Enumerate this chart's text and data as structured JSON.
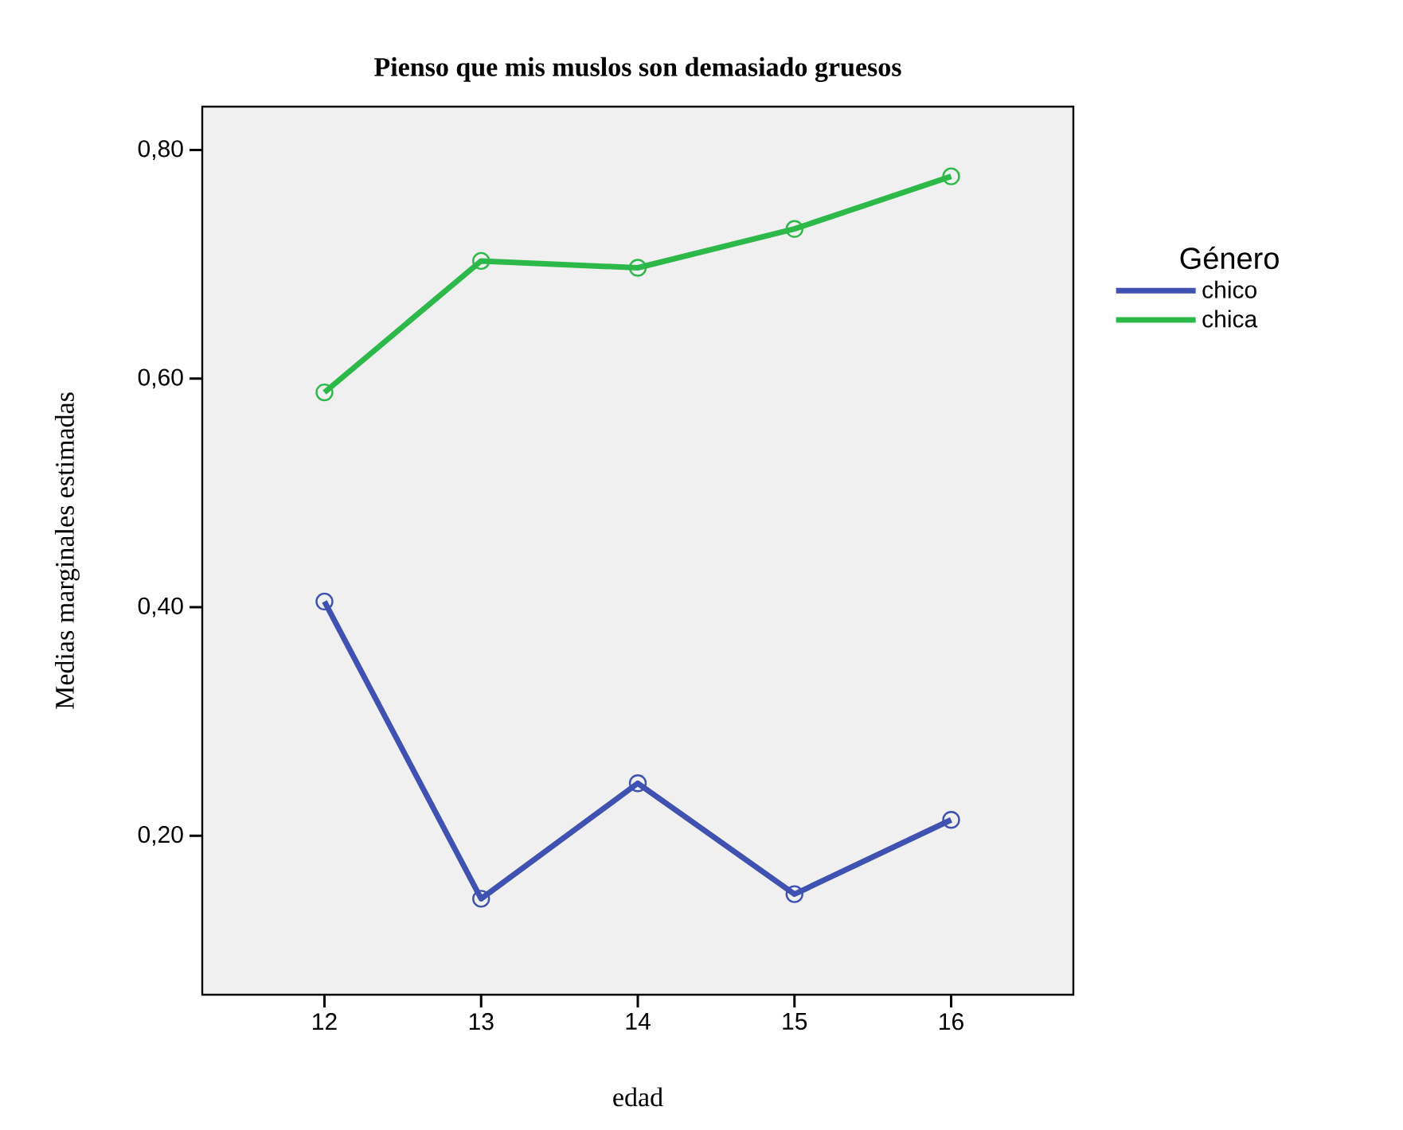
{
  "chart_data": {
    "type": "line",
    "title": "Pienso que mis muslos son demasiado gruesos",
    "xlabel": "edad",
    "ylabel": "Medias marginales estimadas",
    "legend_title": "Género",
    "x": [
      12,
      13,
      14,
      15,
      16
    ],
    "series": [
      {
        "name": "chico",
        "color": "#3f51b1",
        "values": [
          0.405,
          0.145,
          0.246,
          0.149,
          0.214
        ]
      },
      {
        "name": "chica",
        "color": "#2db84a",
        "values": [
          0.588,
          0.703,
          0.697,
          0.731,
          0.777
        ]
      }
    ],
    "xlim": [
      11.22,
      16.78
    ],
    "ylim": [
      0.061,
      0.838
    ],
    "xticks": [
      12,
      13,
      14,
      15,
      16
    ],
    "yticks": [
      {
        "value": 0.2,
        "label": "0,20"
      },
      {
        "value": 0.4,
        "label": "0,40"
      },
      {
        "value": 0.6,
        "label": "0,60"
      },
      {
        "value": 0.8,
        "label": "0,80"
      }
    ],
    "legend": "right",
    "marker": "circle",
    "grid": false,
    "line_style": "solid"
  }
}
